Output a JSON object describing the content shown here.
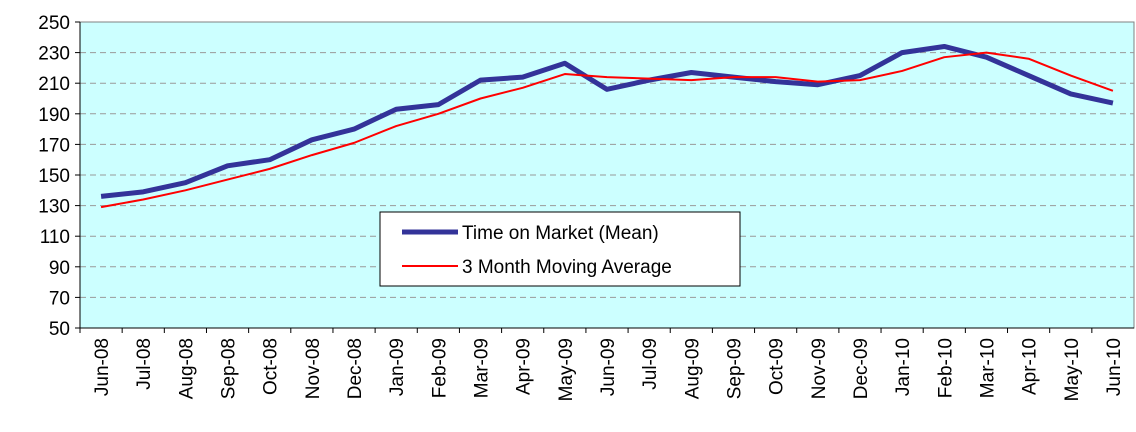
{
  "chart_data": {
    "type": "line",
    "categories": [
      "Jun-08",
      "Jul-08",
      "Aug-08",
      "Sep-08",
      "Oct-08",
      "Nov-08",
      "Dec-08",
      "Jan-09",
      "Feb-09",
      "Mar-09",
      "Apr-09",
      "May-09",
      "Jun-09",
      "Jul-09",
      "Aug-09",
      "Sep-09",
      "Oct-09",
      "Nov-09",
      "Dec-09",
      "Jan-10",
      "Feb-10",
      "Mar-10",
      "Apr-10",
      "May-10",
      "Jun-10"
    ],
    "series": [
      {
        "name": "Time on Market (Mean)",
        "color": "#333399",
        "values": [
          136,
          139,
          145,
          156,
          160,
          173,
          180,
          193,
          196,
          212,
          214,
          223,
          206,
          212,
          217,
          214,
          211,
          209,
          215,
          230,
          234,
          227,
          215,
          203,
          197
        ]
      },
      {
        "name": "3 Month Moving Average",
        "color": "#ff0000",
        "values": [
          129,
          134,
          140,
          147,
          154,
          163,
          171,
          182,
          190,
          200,
          207,
          216,
          214,
          213,
          212,
          214,
          214,
          211,
          212,
          218,
          227,
          230,
          226,
          215,
          205
        ]
      }
    ],
    "ylim": [
      50,
      250
    ],
    "yticks": [
      50,
      70,
      90,
      110,
      130,
      150,
      170,
      190,
      210,
      230,
      250
    ],
    "grid": true
  }
}
